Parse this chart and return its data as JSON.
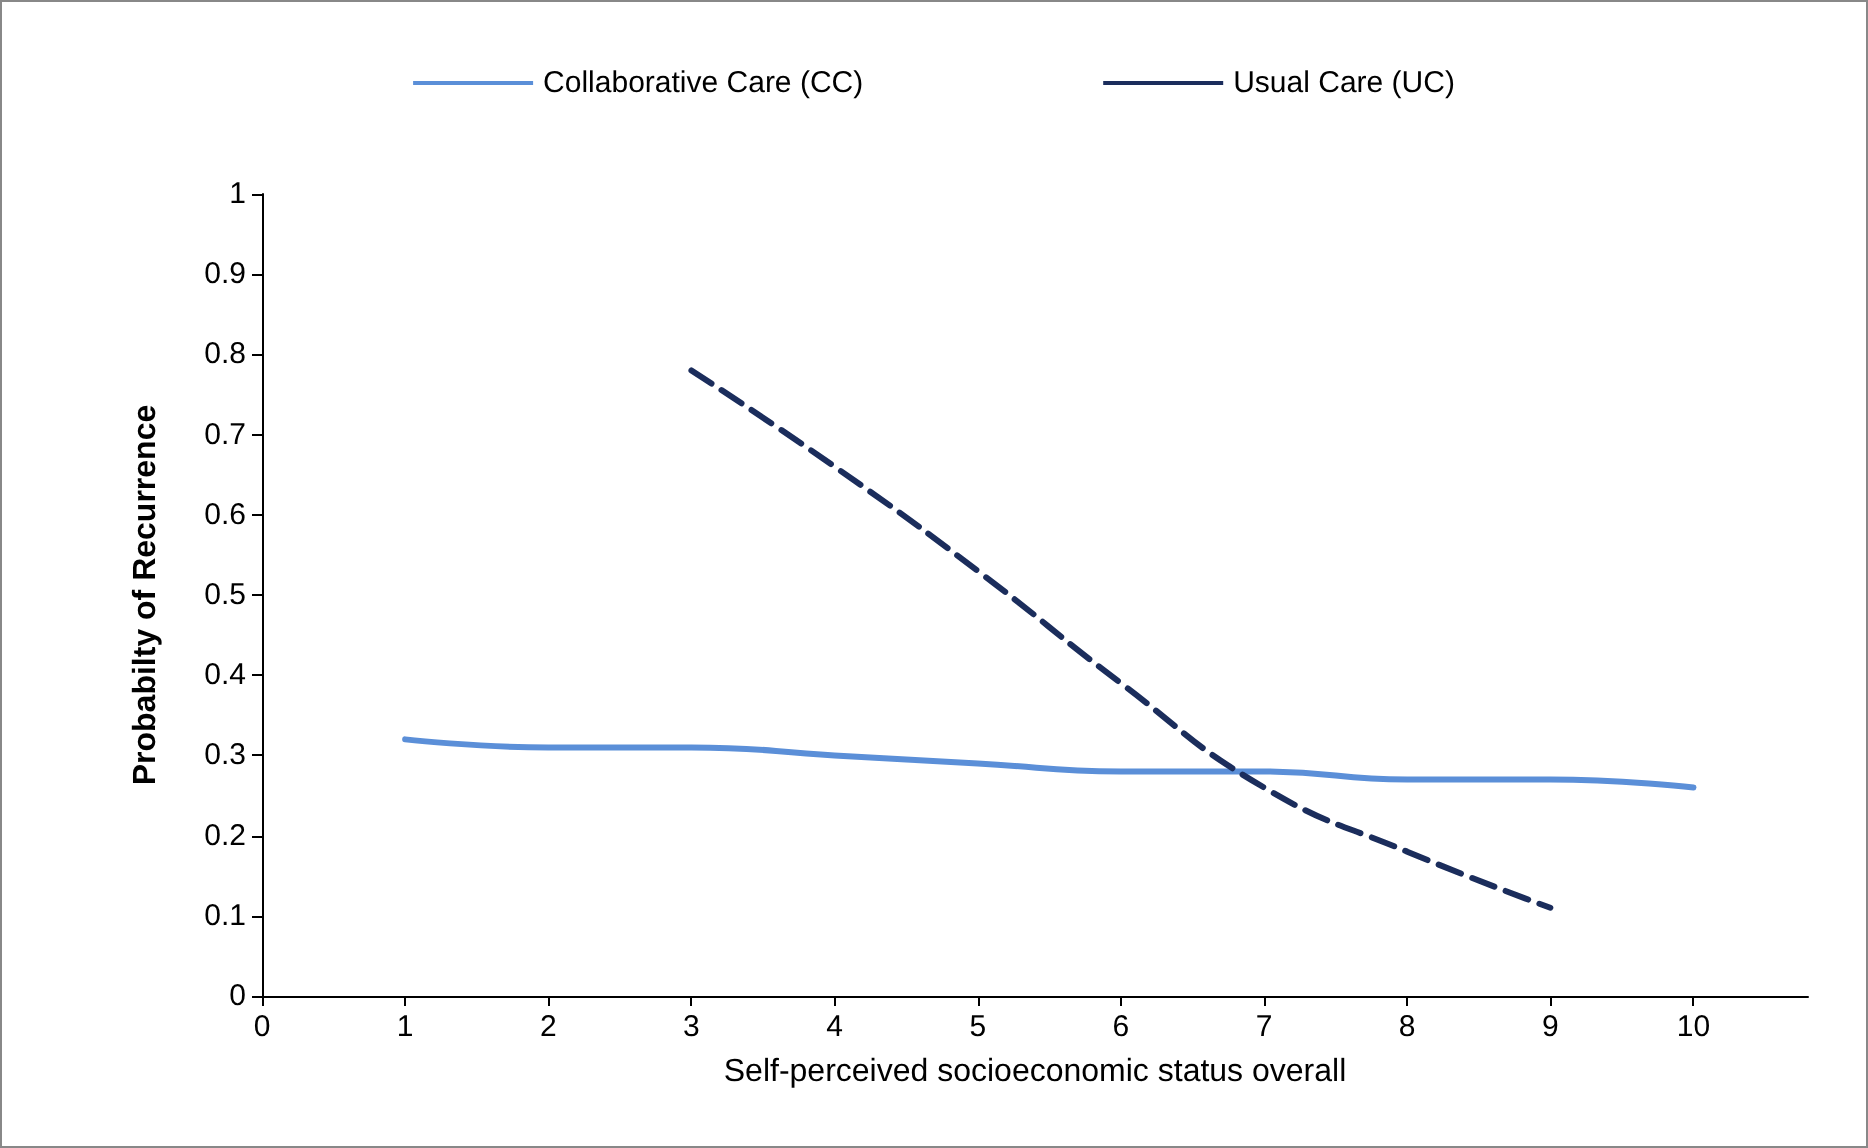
{
  "chart_data": {
    "type": "line",
    "xlabel": "Self-perceived socioeconomic status overall",
    "ylabel": "Probabilty of Recurrence",
    "xlim": [
      0,
      10.8
    ],
    "xticks": [
      0,
      1,
      2,
      3,
      4,
      5,
      6,
      7,
      8,
      9,
      10
    ],
    "ylim": [
      0,
      1
    ],
    "yticks": [
      0,
      0.1,
      0.2,
      0.3,
      0.4,
      0.5,
      0.6,
      0.7,
      0.8,
      0.9,
      1
    ],
    "grid": false,
    "legend": "top",
    "marker": "none",
    "series": [
      {
        "name": "Collaborative Care (CC)",
        "color": "#5b8fd8",
        "line_style": "solid",
        "x": [
          1,
          2,
          3,
          4,
          5,
          6,
          7,
          8,
          9,
          10
        ],
        "values": [
          0.32,
          0.31,
          0.31,
          0.3,
          0.29,
          0.28,
          0.28,
          0.27,
          0.27,
          0.26
        ]
      },
      {
        "name": "Usual Care (UC)",
        "color": "#1b2d5c",
        "line_style": "dashed",
        "x": [
          3,
          4,
          5,
          6,
          7,
          8,
          9
        ],
        "values": [
          0.78,
          0.66,
          0.53,
          0.39,
          0.26,
          0.18,
          0.11
        ]
      }
    ]
  }
}
